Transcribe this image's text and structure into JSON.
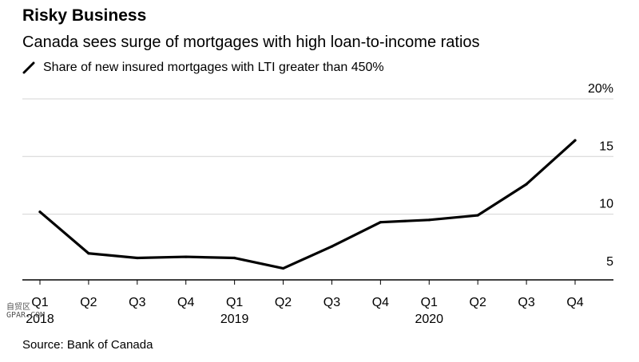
{
  "header": {
    "title": "Risky Business",
    "subtitle": "Canada sees surge of mortgages with high loan-to-income ratios",
    "legend_label": "Share of new insured mortgages with LTI greater than 450%"
  },
  "footer": {
    "source": "Source: Bank of Canada"
  },
  "watermark": {
    "line1": "自贸区",
    "line2": "GPAR.COM"
  },
  "colors": {
    "line": "#000000",
    "grid": "#d4d4d4",
    "axis": "#000000"
  },
  "chart_data": {
    "type": "line",
    "title": "Risky Business",
    "subtitle": "Canada sees surge of mortgages with high loan-to-income ratios",
    "quarters": [
      "Q1",
      "Q2",
      "Q3",
      "Q4",
      "Q1",
      "Q2",
      "Q3",
      "Q4",
      "Q1",
      "Q2",
      "Q3",
      "Q4"
    ],
    "years": [
      {
        "label": "2018",
        "start": 0,
        "end": 3
      },
      {
        "label": "2019",
        "start": 4,
        "end": 7
      },
      {
        "label": "2020",
        "start": 8,
        "end": 11
      }
    ],
    "series": [
      {
        "name": "Share of new insured mortgages with LTI greater than 450%",
        "values": [
          10.2,
          6.6,
          6.2,
          6.3,
          6.2,
          5.3,
          7.2,
          9.3,
          9.5,
          9.9,
          12.6,
          16.4
        ]
      }
    ],
    "yticks": [
      5,
      10,
      15,
      20
    ],
    "ytick_labels": [
      "5",
      "10",
      "15",
      "20%"
    ],
    "ylim": [
      4.3,
      20
    ],
    "grid": true,
    "y_axis_side": "right"
  }
}
